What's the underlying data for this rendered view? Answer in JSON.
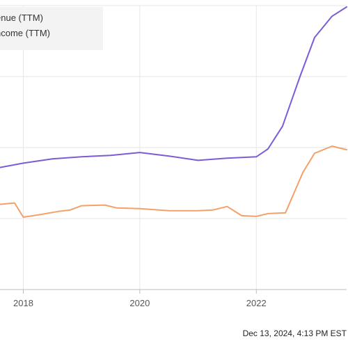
{
  "chart_data": {
    "type": "line",
    "xlabel": "",
    "ylabel": "",
    "x_ticks": [
      "2018",
      "2020",
      "2022"
    ],
    "xlim": [
      2017.6,
      2023.55
    ],
    "ylim": [
      0,
      4
    ],
    "grid": true,
    "legend_placement": "top-left",
    "series": [
      {
        "name": "enue (TTM)",
        "color": "#7b5bd6",
        "points": [
          [
            2017.6,
            1.72
          ],
          [
            2018.0,
            1.78
          ],
          [
            2018.5,
            1.84
          ],
          [
            2019.0,
            1.87
          ],
          [
            2019.5,
            1.89
          ],
          [
            2020.0,
            1.93
          ],
          [
            2020.5,
            1.88
          ],
          [
            2021.0,
            1.82
          ],
          [
            2021.5,
            1.85
          ],
          [
            2022.0,
            1.87
          ],
          [
            2022.2,
            1.98
          ],
          [
            2022.45,
            2.3
          ],
          [
            2022.75,
            3.0
          ],
          [
            2023.0,
            3.55
          ],
          [
            2023.3,
            3.85
          ],
          [
            2023.55,
            3.98
          ]
        ]
      },
      {
        "name": "ncome (TTM)",
        "color": "#f5a06a",
        "points": [
          [
            2017.6,
            1.2
          ],
          [
            2017.85,
            1.22
          ],
          [
            2018.0,
            1.02
          ],
          [
            2018.25,
            1.05
          ],
          [
            2018.6,
            1.1
          ],
          [
            2018.8,
            1.12
          ],
          [
            2019.0,
            1.18
          ],
          [
            2019.4,
            1.19
          ],
          [
            2019.6,
            1.15
          ],
          [
            2020.0,
            1.14
          ],
          [
            2020.5,
            1.11
          ],
          [
            2021.0,
            1.11
          ],
          [
            2021.25,
            1.12
          ],
          [
            2021.5,
            1.17
          ],
          [
            2021.75,
            1.04
          ],
          [
            2022.0,
            1.03
          ],
          [
            2022.2,
            1.07
          ],
          [
            2022.5,
            1.08
          ],
          [
            2022.8,
            1.65
          ],
          [
            2023.0,
            1.92
          ],
          [
            2023.3,
            2.02
          ],
          [
            2023.55,
            1.97
          ]
        ]
      }
    ]
  },
  "footer": {
    "timestamp": "Dec 13, 2024, 4:13 PM EST"
  }
}
